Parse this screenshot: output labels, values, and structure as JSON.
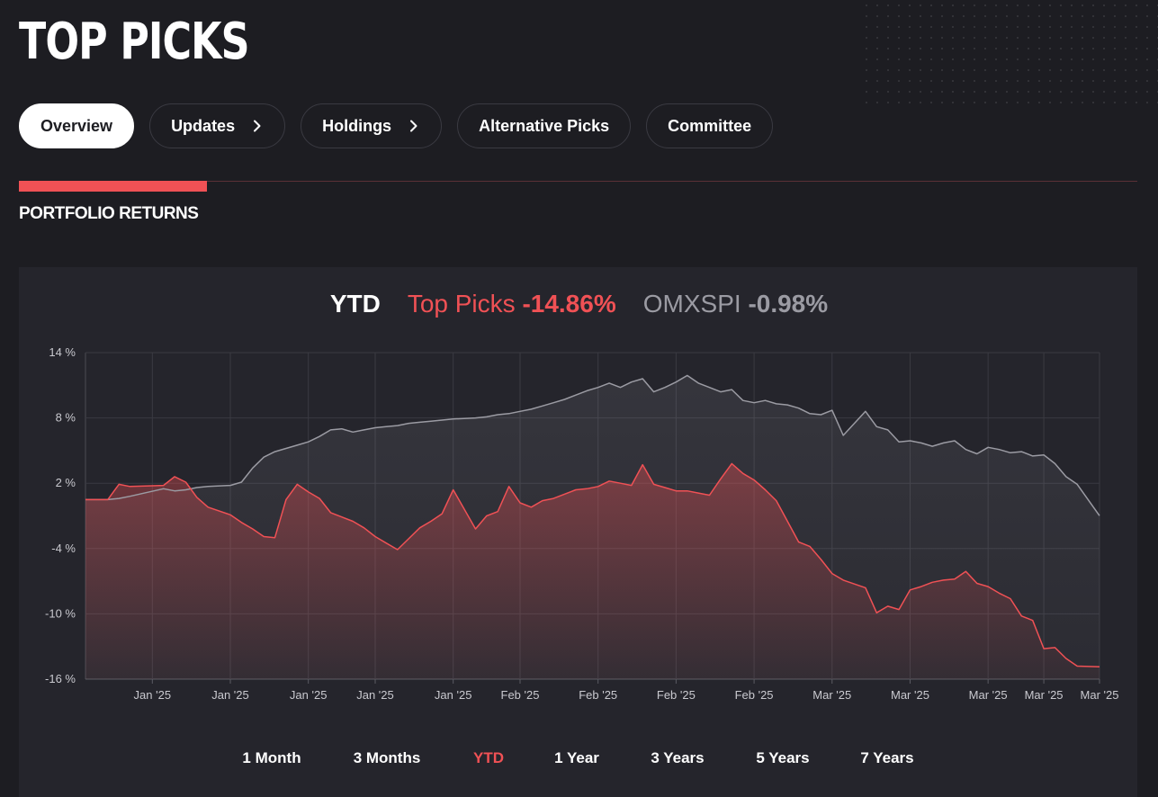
{
  "header": {
    "title": "TOP PICKS"
  },
  "tabs": [
    {
      "label": "Overview",
      "active": true,
      "chevron": false
    },
    {
      "label": "Updates",
      "active": false,
      "chevron": true
    },
    {
      "label": "Holdings",
      "active": false,
      "chevron": true
    },
    {
      "label": "Alternative Picks",
      "active": false,
      "chevron": false
    },
    {
      "label": "Committee",
      "active": false,
      "chevron": false
    }
  ],
  "section": {
    "title": "PORTFOLIO RETURNS"
  },
  "summary": {
    "period_label": "YTD",
    "portfolio_name": "Top Picks",
    "portfolio_return": "-14.86%",
    "index_name": "OMXSPI",
    "index_return": "-0.98%"
  },
  "period_buttons": [
    {
      "label": "1 Month",
      "active": false
    },
    {
      "label": "3 Months",
      "active": false
    },
    {
      "label": "YTD",
      "active": true
    },
    {
      "label": "1 Year",
      "active": false
    },
    {
      "label": "3 Years",
      "active": false
    },
    {
      "label": "5 Years",
      "active": false
    },
    {
      "label": "7 Years",
      "active": false
    }
  ],
  "colors": {
    "accent": "#f05155",
    "background": "#1d1d22",
    "card": "#25252c",
    "index_line": "#9b9ba3"
  },
  "chart_data": {
    "type": "area",
    "title": "",
    "xlabel": "",
    "ylabel": "",
    "ylim": [
      -16,
      14
    ],
    "y_ticks": [
      14,
      8,
      2,
      -4,
      -10,
      -16
    ],
    "y_tick_labels": [
      "14 %",
      "8 %",
      "2 %",
      "-4 %",
      "-10 %",
      "-16 %"
    ],
    "x_tick_labels": [
      "Jan '25",
      "Jan '25",
      "Jan '25",
      "Jan '25",
      "Jan '25",
      "Feb '25",
      "Feb '25",
      "Feb '25",
      "Feb '25",
      "Mar '25",
      "Mar '25",
      "Mar '25",
      "Mar '25",
      "Mar '25"
    ],
    "x_ticks": [
      6,
      13,
      20,
      26,
      33,
      39,
      46,
      53,
      60,
      67,
      74,
      81,
      86,
      91
    ],
    "x_range": [
      0,
      91
    ],
    "grid": true,
    "series": [
      {
        "name": "OMXSPI",
        "color": "#9b9ba3",
        "x": [
          0,
          2,
          3,
          4,
          7,
          8,
          9,
          10,
          11,
          13,
          14,
          15,
          16,
          17,
          18,
          19,
          20,
          21,
          22,
          23,
          24,
          25,
          26,
          27,
          28,
          29,
          30,
          31,
          32,
          33,
          35,
          36,
          37,
          38,
          39,
          40,
          41,
          42,
          43,
          44,
          45,
          46,
          47,
          48,
          49,
          50,
          51,
          52,
          53,
          54,
          55,
          56,
          57,
          58,
          59,
          60,
          61,
          62,
          63,
          64,
          65,
          66,
          67,
          68,
          70,
          71,
          72,
          73,
          74,
          75,
          76,
          77,
          78,
          79,
          80,
          81,
          82,
          83,
          84,
          85,
          86,
          87,
          88,
          89,
          91
        ],
        "values": [
          0.5,
          0.5,
          0.6,
          0.8,
          1.5,
          1.3,
          1.4,
          1.6,
          1.7,
          1.8,
          2.1,
          3.4,
          4.4,
          4.9,
          5.2,
          5.5,
          5.8,
          6.3,
          6.9,
          7.0,
          6.7,
          6.9,
          7.1,
          7.2,
          7.3,
          7.5,
          7.6,
          7.7,
          7.8,
          7.9,
          8.0,
          8.1,
          8.3,
          8.4,
          8.6,
          8.8,
          9.1,
          9.4,
          9.7,
          10.1,
          10.5,
          10.8,
          11.2,
          10.8,
          11.3,
          11.6,
          10.4,
          10.8,
          11.3,
          11.9,
          11.2,
          10.8,
          10.4,
          10.6,
          9.6,
          9.4,
          9.6,
          9.3,
          9.2,
          8.9,
          8.4,
          8.3,
          8.7,
          6.4,
          8.6,
          7.2,
          6.9,
          5.8,
          5.9,
          5.7,
          5.4,
          5.7,
          5.9,
          5.1,
          4.7,
          5.3,
          5.1,
          4.8,
          4.9,
          4.5,
          4.6,
          3.8,
          2.6,
          1.9,
          -0.98
        ]
      },
      {
        "name": "Top Picks",
        "color": "#f05155",
        "x": [
          0,
          2,
          3,
          4,
          7,
          8,
          9,
          10,
          11,
          13,
          14,
          15,
          16,
          17,
          18,
          19,
          20,
          21,
          22,
          23,
          24,
          25,
          26,
          27,
          28,
          29,
          30,
          31,
          32,
          33,
          35,
          36,
          37,
          38,
          39,
          40,
          41,
          42,
          43,
          44,
          45,
          46,
          47,
          48,
          49,
          50,
          51,
          52,
          53,
          54,
          55,
          56,
          57,
          58,
          59,
          60,
          61,
          62,
          63,
          64,
          65,
          66,
          67,
          68,
          70,
          71,
          72,
          73,
          74,
          75,
          76,
          77,
          78,
          79,
          80,
          81,
          82,
          83,
          84,
          85,
          86,
          87,
          88,
          89,
          91
        ],
        "values": [
          0.5,
          0.5,
          1.9,
          1.7,
          1.8,
          2.6,
          2.1,
          0.7,
          -0.2,
          -0.9,
          -1.6,
          -2.2,
          -2.9,
          -3.0,
          0.5,
          1.9,
          1.2,
          0.6,
          -0.7,
          -1.1,
          -1.5,
          -2.1,
          -2.9,
          -3.5,
          -4.1,
          -3.1,
          -2.1,
          -1.5,
          -0.8,
          1.4,
          -2.2,
          -1.0,
          -0.6,
          1.7,
          0.2,
          -0.2,
          0.4,
          0.6,
          1.0,
          1.4,
          1.5,
          1.7,
          2.2,
          2.0,
          1.8,
          3.7,
          1.9,
          1.6,
          1.3,
          1.3,
          1.1,
          0.9,
          2.4,
          3.8,
          2.9,
          2.3,
          1.4,
          0.4,
          -1.5,
          -3.4,
          -3.8,
          -5.0,
          -6.3,
          -6.9,
          -7.6,
          -9.9,
          -9.3,
          -9.6,
          -7.8,
          -7.5,
          -7.1,
          -6.9,
          -6.8,
          -6.1,
          -7.2,
          -7.5,
          -8.1,
          -8.6,
          -10.2,
          -10.6,
          -13.2,
          -13.1,
          -14.1,
          -14.8,
          -14.86
        ]
      }
    ]
  }
}
